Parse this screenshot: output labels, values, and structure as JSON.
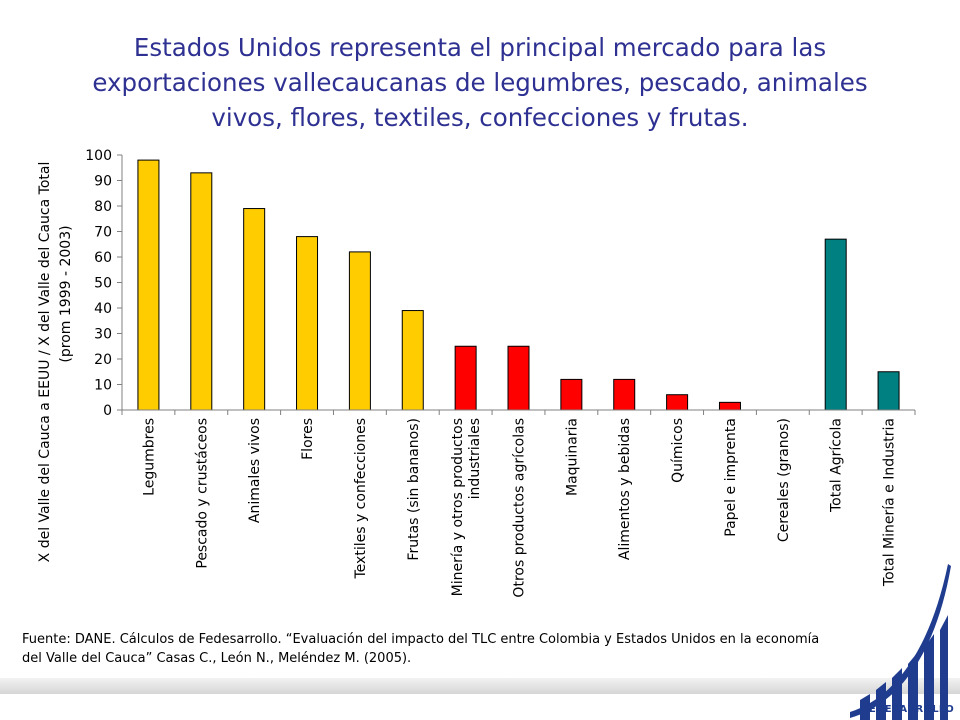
{
  "title": "Estados Unidos representa el principal mercado para las exportaciones vallecaucanas de legumbres, pescado, animales vivos, flores, textiles, confecciones y frutas.",
  "source": "Fuente: DANE. Cálculos de Fedesarrollo. “Evaluación del impacto del TLC entre Colombia y Estados Unidos en la economía del Valle del Cauca” Casas C., León N., Meléndez M. (2005).",
  "logo": {
    "label": "FEDESARROLLO",
    "color": "#1f3c8f"
  },
  "chart_data": {
    "type": "bar",
    "title": "",
    "ylabel": [
      "X del Valle del Cauca a EEUU / X del Valle del Cauca Total",
      "(prom 1999 - 2003)"
    ],
    "xlabel": "",
    "ylim": [
      0,
      100
    ],
    "yticks": [
      0,
      10,
      20,
      30,
      40,
      50,
      60,
      70,
      80,
      90,
      100
    ],
    "grid": false,
    "legend": "none",
    "categories": [
      [
        "Legumbres"
      ],
      [
        "Pescado y crustáceos"
      ],
      [
        "Animales vivos"
      ],
      [
        "Flores"
      ],
      [
        "Textiles y confecciones"
      ],
      [
        "Frutas (sin bananos)"
      ],
      [
        "Minería y otros productos",
        "industriales"
      ],
      [
        "Otros productos agrícolas"
      ],
      [
        "Maquinaria"
      ],
      [
        "Alimentos y bebidas"
      ],
      [
        "Químicos"
      ],
      [
        "Papel e imprenta"
      ],
      [
        "Cereales (granos)"
      ],
      [
        "Total Agrícola"
      ],
      [
        "Total Minería e Industria"
      ]
    ],
    "values": [
      98,
      93,
      79,
      68,
      62,
      39,
      25,
      25,
      12,
      12,
      6,
      3,
      0,
      67,
      15
    ],
    "colors": [
      "#ffcc00",
      "#ffcc00",
      "#ffcc00",
      "#ffcc00",
      "#ffcc00",
      "#ffcc00",
      "#ff0000",
      "#ff0000",
      "#ff0000",
      "#ff0000",
      "#ff0000",
      "#ff0000",
      "#ff0000",
      "#008080",
      "#008080"
    ]
  }
}
